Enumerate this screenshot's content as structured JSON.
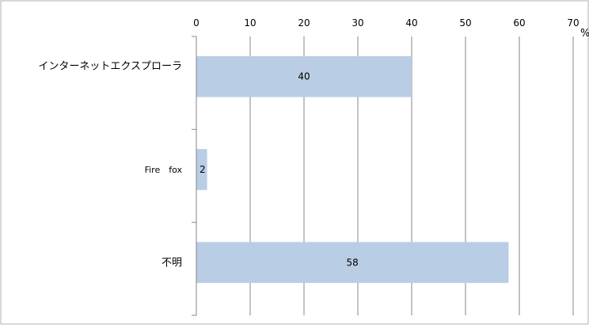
{
  "chart_data": {
    "type": "bar",
    "orientation": "horizontal",
    "categories": [
      "インターネットエクスプローラ",
      "Fire　fox",
      "不明"
    ],
    "values": [
      40,
      2,
      58
    ],
    "data_labels": [
      "40",
      "2",
      "58"
    ],
    "xlim": [
      0,
      70
    ],
    "x_ticks": [
      "0",
      "10",
      "20",
      "30",
      "40",
      "50",
      "60",
      "70"
    ],
    "x_unit": "%",
    "grid": true,
    "x_axis_position": "top",
    "bar_color": "#b9cde5",
    "title": "",
    "xlabel": "",
    "ylabel": ""
  }
}
